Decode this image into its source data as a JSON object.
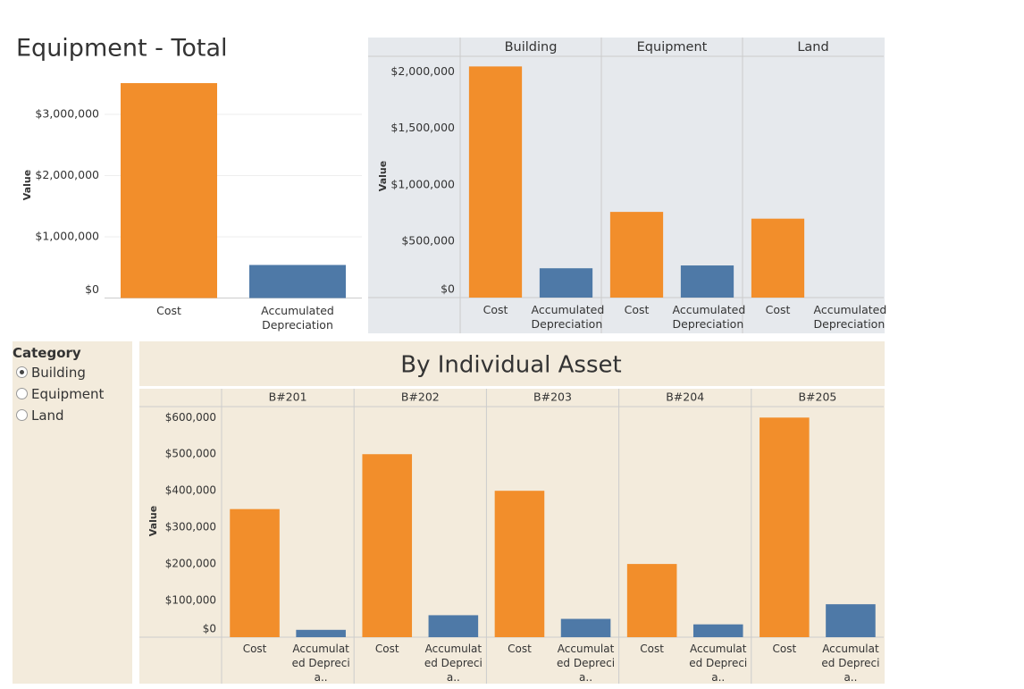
{
  "chart_data": [
    {
      "type": "bar",
      "title": "Equipment - Total",
      "y_label": "Value",
      "categories": [
        "Cost",
        "Accumulated Depreciation"
      ],
      "colors": [
        "#f28e2b",
        "#4e79a7"
      ],
      "values": [
        3510000,
        540000
      ],
      "ylim": [
        0,
        3700000
      ],
      "yticks": [
        {
          "value": 0,
          "label": "$0"
        },
        {
          "value": 1000000,
          "label": "$1,000,000"
        },
        {
          "value": 2000000,
          "label": "$2,000,000"
        },
        {
          "value": 3000000,
          "label": "$3,000,000"
        }
      ],
      "grid": true
    },
    {
      "type": "bar",
      "y_label": "Value",
      "facets": [
        "Building",
        "Equipment",
        "Land"
      ],
      "categories": [
        "Cost",
        "Accumulated Depreciation"
      ],
      "colors": [
        "#f28e2b",
        "#4e79a7"
      ],
      "facet_values": [
        [
          2050000,
          260000
        ],
        [
          760000,
          285000
        ],
        [
          700000,
          null
        ]
      ],
      "ylim": [
        0,
        2140000
      ],
      "yticks": [
        {
          "value": 0,
          "label": "$0"
        },
        {
          "value": 500000,
          "label": "$500,000"
        },
        {
          "value": 1000000,
          "label": "$1,000,000"
        },
        {
          "value": 1500000,
          "label": "$1,500,000"
        },
        {
          "value": 2000000,
          "label": "$2,000,000"
        }
      ],
      "grid": false
    },
    {
      "type": "bar",
      "title": "By Individual Asset",
      "y_label": "Value",
      "facets": [
        "B#201",
        "B#202",
        "B#203",
        "B#204",
        "B#205"
      ],
      "categories": [
        "Cost",
        "Accumulated Deprecia.."
      ],
      "colors": [
        "#f28e2b",
        "#4e79a7"
      ],
      "facet_values": [
        [
          350000,
          20000
        ],
        [
          500000,
          60000
        ],
        [
          400000,
          50000
        ],
        [
          200000,
          35000
        ],
        [
          600000,
          90000
        ]
      ],
      "ylim": [
        0,
        630000
      ],
      "yticks": [
        {
          "value": 0,
          "label": "$0"
        },
        {
          "value": 100000,
          "label": "$100,000"
        },
        {
          "value": 200000,
          "label": "$200,000"
        },
        {
          "value": 300000,
          "label": "$300,000"
        },
        {
          "value": 400000,
          "label": "$400,000"
        },
        {
          "value": 500000,
          "label": "$500,000"
        },
        {
          "value": 600000,
          "label": "$600,000"
        }
      ],
      "grid": false
    }
  ],
  "filter": {
    "title": "Category",
    "options": [
      "Building",
      "Equipment",
      "Land"
    ],
    "selected": 0
  }
}
